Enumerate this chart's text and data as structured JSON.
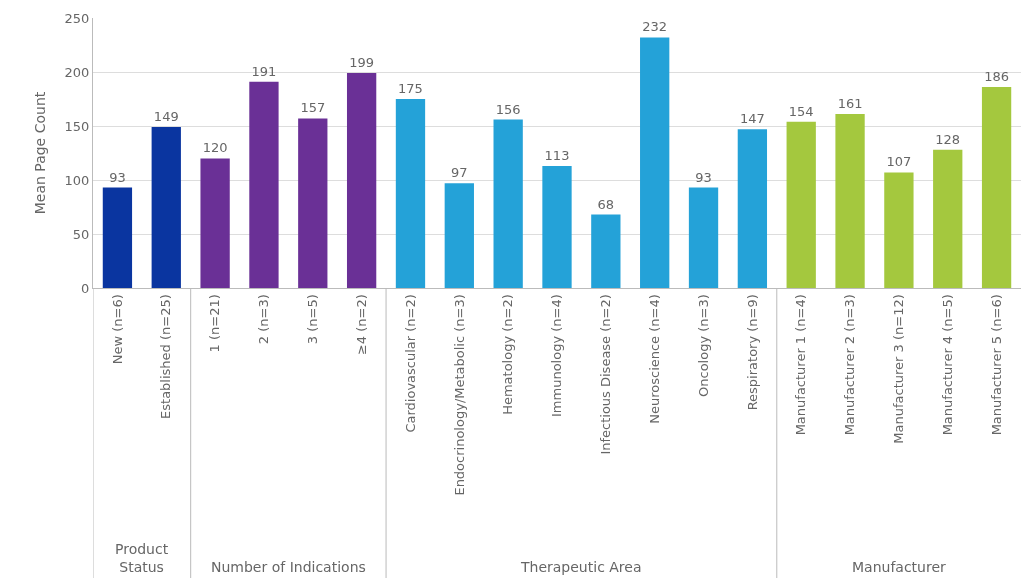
{
  "chart_data": {
    "type": "bar",
    "ylabel": "Mean Page Count",
    "categories": [
      "New (n=6)",
      "Established (n=25)",
      "1 (n=21)",
      "2 (n=3)",
      "3 (n=5)",
      "≥4 (n=2)",
      "Cardiovascular (n=2)",
      "Endocrinology/Metabolic (n=3)",
      "Hematology (n=2)",
      "Immunology (n=4)",
      "Infectious Disease (n=2)",
      "Neuroscience (n=4)",
      "Oncology (n=3)",
      "Respiratory (n=9)",
      "Manufacturer 1 (n=4)",
      "Manufacturer 2 (n=3)",
      "Manufacturer 3 (n=12)",
      "Manufacturer 4 (n=5)",
      "Manufacturer 5 (n=6)"
    ],
    "values": [
      93,
      149,
      120,
      191,
      157,
      199,
      175,
      97,
      156,
      113,
      68,
      232,
      93,
      147,
      154,
      161,
      107,
      128,
      186
    ],
    "colors": [
      "#0a35a0",
      "#0a35a0",
      "#6a3096",
      "#6a3096",
      "#6a3096",
      "#6a3096",
      "#24a2d8",
      "#24a2d8",
      "#24a2d8",
      "#24a2d8",
      "#24a2d8",
      "#24a2d8",
      "#24a2d8",
      "#24a2d8",
      "#a4c83e",
      "#a4c83e",
      "#a4c83e",
      "#a4c83e",
      "#a4c83e"
    ],
    "ylim": [
      0,
      250
    ],
    "yticks": [
      0,
      50,
      100,
      150,
      200,
      250
    ],
    "grid": "y",
    "data_labels": true,
    "annotations": [
      "Product Status",
      "Number of Indications",
      "Therapeutic Area",
      "Manufacturer"
    ]
  }
}
